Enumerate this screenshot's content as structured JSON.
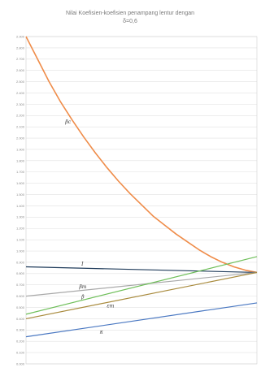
{
  "chart_data": {
    "type": "line",
    "title_lines": [
      "Nilai Koefisien-koefisien penampang lentur dengan",
      "δ=0,6"
    ],
    "xlabel": "",
    "ylabel": "",
    "xlim": [
      0,
      1
    ],
    "ylim": [
      0,
      2.9
    ],
    "yticks": [
      "0.000",
      "0.100",
      "0.200",
      "0.300",
      "0.400",
      "0.500",
      "0.600",
      "0.700",
      "0.800",
      "0.900",
      "1.000",
      "1.100",
      "1.200",
      "1.300",
      "1.400",
      "1.500",
      "1.600",
      "1.700",
      "1.800",
      "1.900",
      "2.000",
      "2.100",
      "2.200",
      "2.300",
      "2.400",
      "2.500",
      "2.600",
      "2.700",
      "2.800",
      "2.900"
    ],
    "grid": true,
    "legend": "none",
    "series": [
      {
        "label": "βc",
        "color": "#ef8c49",
        "label_at": [
          0.17,
          2.13
        ],
        "x": [
          0,
          0.05,
          0.1,
          0.15,
          0.2,
          0.25,
          0.3,
          0.35,
          0.4,
          0.45,
          0.5,
          0.55,
          0.6,
          0.65,
          0.7,
          0.75,
          0.8,
          0.85,
          0.9,
          0.95,
          1.0
        ],
        "y": [
          2.9,
          2.7,
          2.5,
          2.32,
          2.16,
          2.01,
          1.87,
          1.74,
          1.62,
          1.51,
          1.41,
          1.31,
          1.23,
          1.15,
          1.08,
          1.01,
          0.95,
          0.9,
          0.86,
          0.83,
          0.81
        ]
      },
      {
        "label": "I",
        "color": "#1f3b5a",
        "label_at": [
          0.24,
          0.87
        ],
        "x": [
          0,
          1
        ],
        "y": [
          0.86,
          0.81
        ]
      },
      {
        "label": "βm",
        "color": "#a9a9a9",
        "label_at": [
          0.23,
          0.67
        ],
        "x": [
          0,
          1
        ],
        "y": [
          0.6,
          0.81
        ]
      },
      {
        "label": "β",
        "color": "#6fbf5a",
        "label_at": [
          0.24,
          0.58
        ],
        "x": [
          0,
          1
        ],
        "y": [
          0.44,
          0.95
        ]
      },
      {
        "label": "εm",
        "color": "#a88a3c",
        "label_at": [
          0.35,
          0.5
        ],
        "x": [
          0,
          1
        ],
        "y": [
          0.4,
          0.81
        ]
      },
      {
        "label": "κ",
        "color": "#4a78c2",
        "label_at": [
          0.32,
          0.27
        ],
        "x": [
          0,
          1
        ],
        "y": [
          0.24,
          0.54
        ]
      }
    ]
  }
}
